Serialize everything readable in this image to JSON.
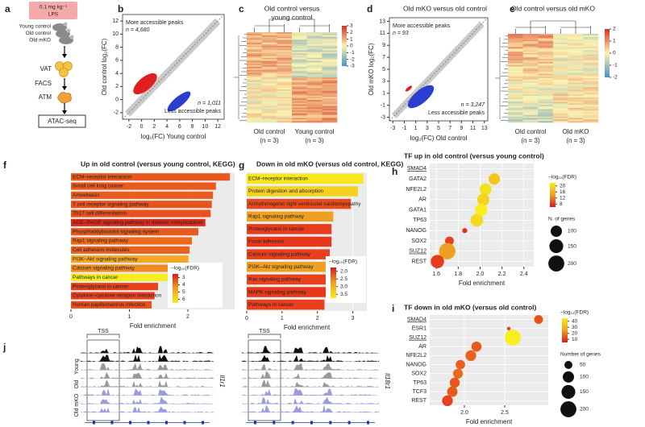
{
  "panels": {
    "a": {
      "letter": "a",
      "dose": "0.1 mg kg⁻¹",
      "stimulus": "LPS",
      "groups": [
        "Young control",
        "Old control",
        "Old mKO"
      ],
      "steps": [
        "VAT",
        "FACS",
        "ATM",
        "ATAC-seq"
      ]
    },
    "b": {
      "letter": "b",
      "type": "scatter",
      "x_label": "log₂(FC) Young control",
      "y_label": "Old control log₂(FC)",
      "xlim": [
        -3,
        13
      ],
      "ylim": [
        -3,
        13
      ],
      "xticks": [
        -2,
        0,
        2,
        4,
        6,
        8,
        10,
        12
      ],
      "yticks": [
        -2,
        0,
        2,
        4,
        6,
        8,
        10,
        12
      ],
      "up_label": "More accessible peaks",
      "up_n": "n = 4,680",
      "down_n": "n = 1,011",
      "down_label": "Less accessible peaks"
    },
    "c": {
      "letter": "c",
      "type": "heatmap",
      "title_lines": [
        "Old control versus",
        "young control"
      ],
      "groups": [
        "Old control",
        "Young control"
      ],
      "group_n": [
        "(n = 3)",
        "(n = 3)"
      ],
      "colorbar_ticks": [
        3,
        2,
        1,
        0,
        -1,
        -2,
        -3
      ],
      "colorscale": [
        "#d7301f",
        "#fdf3b0",
        "#4a8fc8"
      ]
    },
    "d": {
      "letter": "d",
      "type": "scatter",
      "title": "Old mKO versus old control",
      "x_label": "log₂(FC) Old control",
      "y_label": "Old mKO log₂(FC)",
      "xlim": [
        -3.6,
        13.6
      ],
      "ylim": [
        -3.6,
        13.6
      ],
      "xticks": [
        -3,
        -1,
        1,
        3,
        5,
        7,
        9,
        11,
        13
      ],
      "yticks": [
        -3,
        -1,
        1,
        3,
        5,
        7,
        9,
        11,
        13
      ],
      "up_label": "More accessible peaks",
      "up_n": "n = 93",
      "down_n": "n = 3,247",
      "down_label": "Less accessible peaks"
    },
    "e": {
      "letter": "e",
      "type": "heatmap",
      "title_lines": [
        "Old control versus old mKO"
      ],
      "groups": [
        "Old control",
        "Old mKO"
      ],
      "group_n": [
        "(n = 3)",
        "(n = 3)"
      ],
      "colorbar_ticks": [
        2,
        1,
        0,
        -1,
        -2
      ],
      "colorscale": [
        "#d7301f",
        "#fdf3b0",
        "#4a8fc8"
      ]
    },
    "f": {
      "letter": "f",
      "type": "bar",
      "title": "Up in old control (versus young control, KEGG)",
      "categories": [
        "ECM–receptor interaction",
        "Small cell lung cancer",
        "Amoebiasis",
        "T cell receptor signaling pathway",
        "Th17 cell differentiation",
        "AGE–RAGE signaling pathway in diabetic complications",
        "Phosphatidylinositol signaling system",
        "Rap1 signaling pathway",
        "Cell adhesion molecules",
        "PI3K–Akt signaling pathway",
        "Calcium signaling pathway",
        "Pathways in cancer",
        "Proteoglycans in cancer",
        "Cytokine–cytokine receptor interaction",
        "Human papillomavirus infection"
      ],
      "values": [
        2.72,
        2.48,
        2.43,
        2.41,
        2.39,
        2.3,
        2.18,
        2.07,
        2.03,
        2.01,
        2.0,
        1.99,
        1.49,
        1.43,
        1.38
      ],
      "colors": [
        "#e9571c",
        "#e95a1c",
        "#ea5d1c",
        "#e9541c",
        "#e8511c",
        "#dc2a1c",
        "#e65a1c",
        "#eb6b1a",
        "#e8601c",
        "#f5a623",
        "#f08a20",
        "#f7ec1c",
        "#e8421c",
        "#e8401c",
        "#e8501c"
      ],
      "xlim": [
        0,
        2.8
      ],
      "xticks": [
        0,
        1,
        2
      ],
      "x_label": "Fold enrichment",
      "grid": true,
      "legend_title": "−log₁₀(FDR)",
      "legend_ticks": [
        3,
        4,
        5,
        6
      ],
      "colorscale": [
        "#d7191c",
        "#f0a020",
        "#f7ec1c"
      ]
    },
    "g": {
      "letter": "g",
      "type": "bar",
      "title": "Down in old mKO (versus old control, KEGG)",
      "categories": [
        "ECM–receptor interaction",
        "Protein digestion and absorption",
        "Arrhythmogenic right ventricular cardiomyopathy",
        "Rap1 signaling pathway",
        "Proteoglycans in cancer",
        "Focal adhesion",
        "Calcium signaling pathway",
        "PI3K–Akt signaling pathway",
        "Ras signaling pathway",
        "MAPK signaling pathway",
        "Pathways in cancer"
      ],
      "values": [
        3.3,
        3.15,
        2.95,
        2.45,
        2.4,
        2.4,
        2.35,
        2.3,
        2.3,
        2.25,
        2.2
      ],
      "colors": [
        "#f7e81c",
        "#f5d21e",
        "#e84a1c",
        "#f0a020",
        "#e83c1c",
        "#e8381c",
        "#e8401c",
        "#f0a021",
        "#e8421c",
        "#e8381c",
        "#e8401c"
      ],
      "xlim": [
        0,
        3.4
      ],
      "xticks": [
        0,
        1,
        2,
        3
      ],
      "x_label": "Fold enrichment",
      "grid": true,
      "legend_title": "−log₁₀(FDR)",
      "legend_ticks": [
        {
          "value": 2,
          "label": "2.0"
        },
        {
          "value": 2.5,
          "label": "2.5"
        },
        {
          "value": 3,
          "label": "3.0"
        },
        {
          "value": 3.5,
          "label": "3.5"
        }
      ],
      "colorscale": [
        "#d7191c",
        "#f0a020",
        "#f7ec1c"
      ]
    },
    "h": {
      "letter": "h",
      "type": "dot",
      "title": "TF up in old control (versus young control)",
      "categories": [
        "SMAD4",
        "GATA2",
        "NFE2L2",
        "AR",
        "GATA1",
        "TP63",
        "NANOG",
        "SOX2",
        "SUZ12",
        "REST"
      ],
      "underlined": [
        0,
        8
      ],
      "values": [
        null,
        2.13,
        2.05,
        2.03,
        2.01,
        1.97,
        1.86,
        1.72,
        1.7,
        1.61
      ],
      "sizes": [
        null,
        100,
        110,
        115,
        120,
        125,
        20,
        60,
        210,
        140
      ],
      "colors": [
        null,
        "#f5c518",
        "#f2e11d",
        "#f4d21d",
        "#f7ef1f",
        "#f5d820",
        "#e0301e",
        "#e8401c",
        "#f0a020",
        "#e63b1c"
      ],
      "xlim": [
        1.54,
        2.49
      ],
      "xticks": [
        1.6,
        1.8,
        {
          "value": 2,
          "label": "2.0"
        },
        2.2,
        2.4
      ],
      "x_label": "Fold enrichment",
      "legend_title": "−log₁₀(FDR)",
      "legend_ticks": [
        20,
        16,
        12,
        8
      ],
      "colorscale": [
        "#f7ec1c",
        "#f0a020",
        "#d7191c"
      ],
      "size_title": "N. of genes",
      "size_ticks": [
        100,
        150,
        200
      ]
    },
    "i": {
      "letter": "i",
      "type": "dot",
      "title": "TF down in old mKO (versus old control)",
      "categories": [
        "SMAD4",
        "ESR1",
        "SUZ12",
        "AR",
        "NFE2L2",
        "NANOG",
        "SOX2",
        "TP63",
        "TCF3",
        "REST"
      ],
      "underlined": [
        0,
        2
      ],
      "values": [
        2.92,
        2.55,
        2.6,
        2.15,
        2.08,
        1.95,
        1.92,
        1.88,
        1.85,
        1.79
      ],
      "sizes": [
        60,
        10,
        200,
        80,
        90,
        70,
        75,
        80,
        85,
        90
      ],
      "colors": [
        "#e8501c",
        "#e8401c",
        "#f5ef1f",
        "#e85a1c",
        "#e8601c",
        "#e8601c",
        "#e86a1c",
        "#e8581c",
        "#e85a1c",
        "#e8401c"
      ],
      "xlim": [
        1.57,
        3.04
      ],
      "xticks": [
        {
          "value": 2,
          "label": "2.0"
        },
        2.5
      ],
      "x_label": "Fold enrichment",
      "legend_title": "−log₁₀(FDR)",
      "legend_ticks": [
        40,
        30,
        20,
        10
      ],
      "colorscale": [
        "#f7ec1c",
        "#f0a020",
        "#d7191c"
      ],
      "size_title": "Number of genes",
      "size_ticks": [
        50,
        100,
        150,
        200
      ]
    },
    "j": {
      "letter": "j",
      "tss": "TSS",
      "row_groups": [
        "Young",
        "Old",
        "Old mKO"
      ],
      "genes": [
        "Il1r1",
        "Il18r1"
      ]
    }
  }
}
